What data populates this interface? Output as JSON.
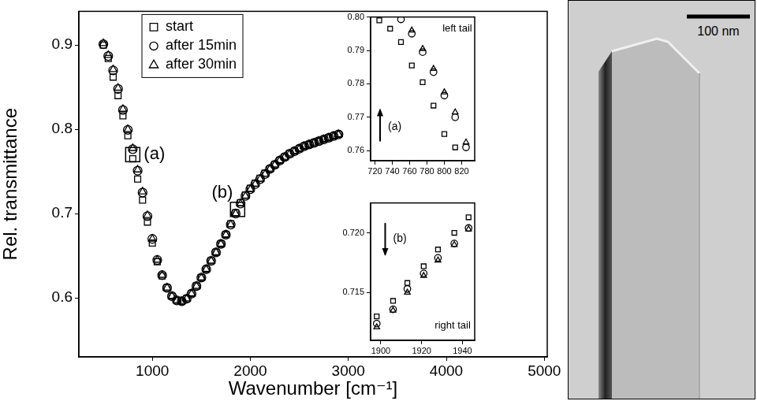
{
  "chart_data": [
    {
      "type": "scatter",
      "x_label": "Wavenumber [cm⁻¹]",
      "y_label": "Rel. transmittance",
      "xlim": [
        250,
        5030
      ],
      "ylim": [
        0.53,
        0.94
      ],
      "xticks": [
        1000,
        2000,
        3000,
        4000,
        5000
      ],
      "yticks": [
        0.6,
        0.7,
        0.8,
        0.9
      ],
      "grid": false,
      "legend": "upper left",
      "series": [
        {
          "name": "start",
          "color": "#000000",
          "marker": "square",
          "x": [
            500,
            550,
            600,
            650,
            700,
            750,
            800,
            850,
            900,
            950,
            1000,
            1050,
            1100,
            1150,
            1200,
            1250,
            1300,
            1350,
            1400,
            1450,
            1500,
            1550,
            1600,
            1650,
            1700,
            1750,
            1800,
            1850,
            1900,
            1950,
            2000,
            2050,
            2100,
            2150,
            2200,
            2250,
            2300,
            2350,
            2400,
            2450,
            2500,
            2550,
            2600,
            2650,
            2700,
            2750,
            2800,
            2850,
            2900
          ],
          "values": [
            0.9,
            0.884,
            0.862,
            0.84,
            0.816,
            0.7925,
            0.765,
            0.741,
            0.716,
            0.69,
            0.665,
            0.643,
            0.626,
            0.612,
            0.602,
            0.597,
            0.596,
            0.599,
            0.605,
            0.614,
            0.624,
            0.634,
            0.644,
            0.654,
            0.664,
            0.675,
            0.688,
            0.701,
            0.713,
            0.722,
            0.73,
            0.736,
            0.742,
            0.748,
            0.753,
            0.758,
            0.763,
            0.767,
            0.771,
            0.774,
            0.777,
            0.78,
            0.782,
            0.784,
            0.786,
            0.788,
            0.79,
            0.792,
            0.794
          ]
        },
        {
          "name": "after 15min",
          "color": "#000000",
          "marker": "circle",
          "x": [
            500,
            550,
            600,
            650,
            700,
            750,
            800,
            850,
            900,
            950,
            1000,
            1050,
            1100,
            1150,
            1200,
            1250,
            1300,
            1350,
            1400,
            1450,
            1500,
            1550,
            1600,
            1650,
            1700,
            1750,
            1800,
            1850,
            1900,
            1950,
            2000,
            2050,
            2100,
            2150,
            2200,
            2250,
            2300,
            2350,
            2400,
            2450,
            2500,
            2550,
            2600,
            2650,
            2700,
            2750,
            2800,
            2850,
            2900
          ],
          "values": [
            0.901,
            0.887,
            0.87,
            0.848,
            0.823,
            0.7993,
            0.7765,
            0.751,
            0.725,
            0.697,
            0.67,
            0.645,
            0.627,
            0.612,
            0.602,
            0.597,
            0.596,
            0.599,
            0.605,
            0.614,
            0.624,
            0.634,
            0.644,
            0.654,
            0.664,
            0.675,
            0.687,
            0.7,
            0.712,
            0.721,
            0.729,
            0.735,
            0.741,
            0.747,
            0.753,
            0.758,
            0.763,
            0.767,
            0.771,
            0.774,
            0.777,
            0.78,
            0.782,
            0.784,
            0.786,
            0.788,
            0.79,
            0.792,
            0.794
          ]
        },
        {
          "name": "after 30min",
          "color": "#000000",
          "marker": "triangle",
          "x": [
            500,
            550,
            600,
            650,
            700,
            750,
            800,
            850,
            900,
            950,
            1000,
            1050,
            1100,
            1150,
            1200,
            1250,
            1300,
            1350,
            1400,
            1450,
            1500,
            1550,
            1600,
            1650,
            1700,
            1750,
            1800,
            1850,
            1900,
            1950,
            2000,
            2050,
            2100,
            2150,
            2200,
            2250,
            2300,
            2350,
            2400,
            2450,
            2500,
            2550,
            2600,
            2650,
            2700,
            2750,
            2800,
            2850,
            2900
          ],
          "values": [
            0.902,
            0.888,
            0.871,
            0.849,
            0.824,
            0.8,
            0.7775,
            0.752,
            0.726,
            0.698,
            0.67,
            0.645,
            0.627,
            0.612,
            0.602,
            0.597,
            0.596,
            0.599,
            0.605,
            0.614,
            0.624,
            0.634,
            0.644,
            0.654,
            0.664,
            0.675,
            0.687,
            0.7,
            0.7118,
            0.7208,
            0.7288,
            0.735,
            0.741,
            0.747,
            0.753,
            0.758,
            0.763,
            0.767,
            0.771,
            0.774,
            0.777,
            0.78,
            0.782,
            0.784,
            0.786,
            0.788,
            0.79,
            0.792,
            0.794
          ]
        }
      ],
      "annotations": [
        {
          "text": "(a)",
          "x": 800,
          "y": 0.77
        },
        {
          "text": "(b)",
          "x": 1870,
          "y": 0.705
        }
      ]
    },
    {
      "type": "scatter",
      "xlim": [
        715,
        835
      ],
      "ylim": [
        0.757,
        0.8
      ],
      "xticks": [
        720,
        740,
        760,
        780,
        800,
        820
      ],
      "yticks": [
        0.76,
        0.77,
        0.78,
        0.79,
        {
          "value": 0.8,
          "label": "0.80"
        }
      ],
      "grid": false,
      "series": [
        {
          "name": "start",
          "color": "#000000",
          "marker": "square",
          "x": [
            725,
            737.5,
            750,
            762.5,
            775,
            787.5,
            800,
            812.5
          ],
          "values": [
            0.799,
            0.7965,
            0.7925,
            0.7855,
            0.7805,
            0.7735,
            0.765,
            0.761
          ]
        },
        {
          "name": "after 15min",
          "color": "#000000",
          "marker": "circle",
          "x": [
            750,
            762.5,
            775,
            787.5,
            800,
            812.5,
            825
          ],
          "values": [
            0.7993,
            0.795,
            0.7895,
            0.7835,
            0.7765,
            0.77,
            0.761
          ]
        },
        {
          "name": "after 30min",
          "color": "#000000",
          "marker": "triangle",
          "x": [
            762.5,
            775,
            787.5,
            800,
            812.5,
            825
          ],
          "values": [
            0.796,
            0.7905,
            0.7845,
            0.7775,
            0.7715,
            0.7625
          ]
        }
      ],
      "annotations": [
        {
          "text": "left tail",
          "x": 832,
          "y": 0.7965
        },
        {
          "text": "(a)",
          "x": 735,
          "y": 0.767
        }
      ]
    },
    {
      "type": "scatter",
      "xlim": [
        1895,
        1946
      ],
      "ylim": [
        0.711,
        0.7225
      ],
      "xticks": [
        1900,
        1920,
        1940
      ],
      "yticks": [
        0.715,
        {
          "value": 0.72,
          "label": "0.720"
        }
      ],
      "grid": false,
      "series": [
        {
          "name": "start",
          "color": "#000000",
          "marker": "square",
          "x": [
            1898,
            1906,
            1913,
            1921,
            1928,
            1936,
            1943
          ],
          "values": [
            0.713,
            0.7143,
            0.7158,
            0.7172,
            0.7186,
            0.72,
            0.7213
          ]
        },
        {
          "name": "after 15min",
          "color": "#000000",
          "marker": "circle",
          "x": [
            1898,
            1906,
            1913,
            1921,
            1928,
            1936,
            1943
          ],
          "values": [
            0.7124,
            0.7136,
            0.7153,
            0.7166,
            0.7179,
            0.7191,
            0.7204
          ]
        },
        {
          "name": "after 30min",
          "color": "#000000",
          "marker": "triangle",
          "x": [
            1898,
            1906,
            1913,
            1921,
            1928,
            1936,
            1943
          ],
          "values": [
            0.7121,
            0.7135,
            0.715,
            0.7164,
            0.7177,
            0.719,
            0.7203
          ]
        }
      ],
      "annotations": [
        {
          "text": "right tail",
          "x": 1944,
          "y": 0.7122
        },
        {
          "text": "(b)",
          "x": 1906,
          "y": 0.7195
        }
      ]
    }
  ],
  "image_panel": {
    "scale_bar_label": "100 nm"
  }
}
